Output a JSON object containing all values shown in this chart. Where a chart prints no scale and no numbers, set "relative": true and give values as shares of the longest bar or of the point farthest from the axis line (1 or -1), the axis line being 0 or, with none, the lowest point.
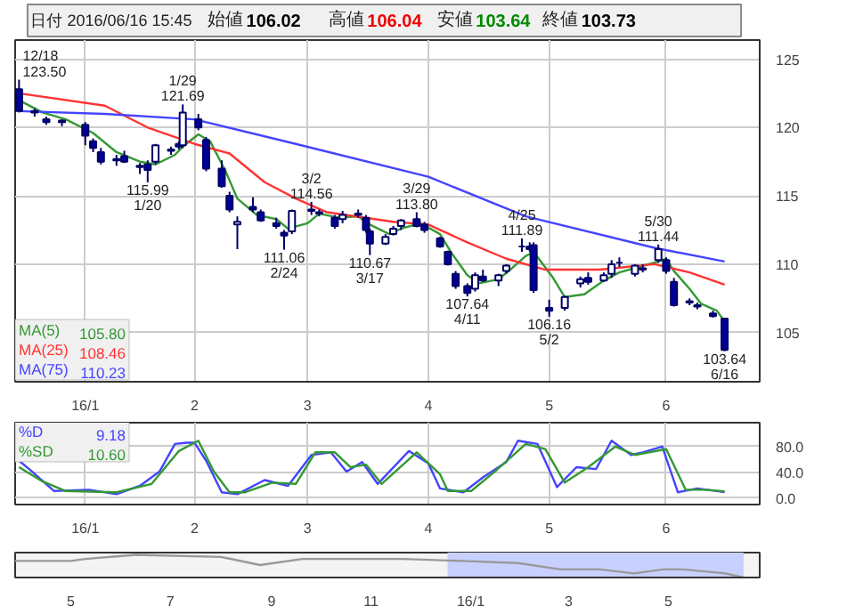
{
  "chart_data": [
    {
      "type": "candlestick",
      "title": "日付 2016/06/16 15:45",
      "x": [
        "2015-12-18",
        "2015-12-22",
        "2015-12-25",
        "2015-12-29",
        "2016-01-04",
        "2016-01-06",
        "2016-01-08",
        "2016-01-12",
        "2016-01-14",
        "2016-01-18",
        "2016-01-20",
        "2016-01-22",
        "2016-01-26",
        "2016-01-28",
        "2016-01-29",
        "2016-02-02",
        "2016-02-04",
        "2016-02-08",
        "2016-02-10",
        "2016-02-12",
        "2016-02-16",
        "2016-02-18",
        "2016-02-22",
        "2016-02-24",
        "2016-02-26",
        "2016-03-02",
        "2016-03-04",
        "2016-03-08",
        "2016-03-10",
        "2016-03-14",
        "2016-03-16",
        "2016-03-17",
        "2016-03-21",
        "2016-03-23",
        "2016-03-25",
        "2016-03-29",
        "2016-03-31",
        "2016-04-04",
        "2016-04-06",
        "2016-04-08",
        "2016-04-11",
        "2016-04-13",
        "2016-04-15",
        "2016-04-19",
        "2016-04-21",
        "2016-04-25",
        "2016-04-27",
        "2016-04-28",
        "2016-05-02",
        "2016-05-06",
        "2016-05-10",
        "2016-05-12",
        "2016-05-16",
        "2016-05-18",
        "2016-05-20",
        "2016-05-24",
        "2016-05-26",
        "2016-05-30",
        "2016-06-01",
        "2016-06-03",
        "2016-06-07",
        "2016-06-09",
        "2016-06-13",
        "2016-06-16"
      ],
      "ohlc": [
        [
          122.8,
          123.5,
          121.1,
          121.2
        ],
        [
          121.2,
          121.4,
          120.8,
          121.1
        ],
        [
          120.6,
          120.8,
          120.2,
          120.4
        ],
        [
          120.4,
          120.6,
          120.1,
          120.5
        ],
        [
          120.2,
          120.4,
          118.7,
          119.4
        ],
        [
          119.0,
          119.2,
          118.2,
          118.5
        ],
        [
          118.2,
          118.5,
          117.3,
          117.5
        ],
        [
          117.6,
          118.0,
          117.2,
          117.7
        ],
        [
          117.9,
          118.3,
          117.4,
          117.5
        ],
        [
          117.1,
          117.4,
          116.6,
          117.2
        ],
        [
          117.3,
          117.6,
          115.99,
          116.9
        ],
        [
          117.5,
          118.8,
          117.3,
          118.7
        ],
        [
          118.4,
          118.6,
          118.0,
          118.3
        ],
        [
          118.8,
          119.0,
          118.4,
          118.6
        ],
        [
          118.7,
          121.69,
          118.5,
          121.1
        ],
        [
          120.6,
          121.0,
          119.8,
          120.0
        ],
        [
          119.1,
          119.3,
          116.8,
          117.0
        ],
        [
          117.0,
          117.6,
          115.6,
          115.7
        ],
        [
          115.0,
          115.3,
          113.8,
          114.0
        ],
        [
          112.9,
          113.5,
          111.1,
          113.1
        ],
        [
          114.2,
          114.9,
          113.8,
          114.0
        ],
        [
          113.8,
          114.0,
          113.1,
          113.2
        ],
        [
          113.0,
          113.4,
          112.6,
          112.8
        ],
        [
          112.3,
          112.5,
          111.06,
          112.1
        ],
        [
          112.4,
          114.0,
          112.2,
          113.9
        ],
        [
          113.9,
          114.56,
          113.6,
          114.0
        ],
        [
          113.7,
          114.0,
          113.5,
          113.8
        ],
        [
          113.4,
          113.6,
          112.6,
          112.8
        ],
        [
          113.3,
          113.9,
          113.0,
          113.6
        ],
        [
          113.6,
          114.0,
          113.4,
          113.7
        ],
        [
          113.4,
          113.6,
          112.3,
          112.5
        ],
        [
          112.4,
          112.6,
          110.67,
          111.5
        ],
        [
          111.5,
          112.2,
          111.4,
          112.0
        ],
        [
          112.2,
          112.8,
          112.1,
          112.6
        ],
        [
          112.8,
          113.3,
          112.5,
          113.2
        ],
        [
          113.3,
          113.8,
          112.7,
          112.8
        ],
        [
          112.9,
          113.1,
          112.3,
          112.5
        ],
        [
          111.9,
          112.0,
          111.2,
          111.3
        ],
        [
          110.9,
          111.0,
          109.9,
          110.0
        ],
        [
          109.3,
          109.5,
          108.2,
          108.4
        ],
        [
          108.4,
          108.6,
          107.64,
          107.9
        ],
        [
          108.2,
          109.4,
          108.0,
          109.2
        ],
        [
          109.1,
          109.6,
          108.7,
          108.8
        ],
        [
          108.8,
          109.3,
          108.4,
          109.2
        ],
        [
          109.5,
          110.0,
          109.3,
          109.9
        ],
        [
          111.3,
          111.89,
          110.9,
          111.3
        ],
        [
          111.3,
          111.6,
          110.9,
          111.1
        ],
        [
          111.4,
          111.6,
          107.9,
          108.1
        ],
        [
          106.8,
          107.4,
          106.16,
          106.6
        ],
        [
          106.8,
          107.7,
          106.6,
          107.6
        ],
        [
          108.6,
          109.1,
          108.3,
          108.9
        ],
        [
          109.0,
          109.4,
          108.5,
          108.7
        ],
        [
          108.8,
          109.4,
          108.7,
          109.2
        ],
        [
          109.3,
          110.3,
          109.0,
          110.0
        ],
        [
          110.1,
          110.5,
          109.8,
          110.1
        ],
        [
          109.3,
          110.0,
          109.1,
          109.9
        ],
        [
          109.6,
          110.0,
          109.4,
          109.7
        ],
        [
          110.3,
          111.44,
          110.1,
          111.1
        ],
        [
          110.3,
          110.5,
          109.3,
          109.5
        ],
        [
          108.7,
          109.0,
          106.9,
          107.0
        ],
        [
          107.3,
          107.5,
          107.0,
          107.2
        ],
        [
          107.0,
          107.2,
          106.7,
          106.9
        ],
        [
          106.4,
          106.6,
          106.1,
          106.2
        ],
        [
          106.02,
          106.04,
          103.64,
          103.73
        ]
      ],
      "series": [
        {
          "type": "line",
          "name": "MA(5)",
          "color": "#339933",
          "x": [
            "2015-12-18",
            "2015-12-24",
            "2015-12-30",
            "2016-01-06",
            "2016-01-12",
            "2016-01-18",
            "2016-01-22",
            "2016-01-27",
            "2016-01-29",
            "2016-02-02",
            "2016-02-05",
            "2016-02-09",
            "2016-02-12",
            "2016-02-17",
            "2016-02-22",
            "2016-02-25",
            "2016-03-01",
            "2016-03-04",
            "2016-03-09",
            "2016-03-14",
            "2016-03-17",
            "2016-03-22",
            "2016-03-25",
            "2016-03-30",
            "2016-04-04",
            "2016-04-07",
            "2016-04-11",
            "2016-04-14",
            "2016-04-19",
            "2016-04-22",
            "2016-04-26",
            "2016-04-28",
            "2016-05-03",
            "2016-05-06",
            "2016-05-11",
            "2016-05-16",
            "2016-05-20",
            "2016-05-25",
            "2016-05-30",
            "2016-06-01",
            "2016-06-03",
            "2016-06-07",
            "2016-06-10",
            "2016-06-14",
            "2016-06-16"
          ],
          "values": [
            122.0,
            121.1,
            120.6,
            119.6,
            118.2,
            117.5,
            117.3,
            118.0,
            118.6,
            119.5,
            119.0,
            116.8,
            114.8,
            113.6,
            113.3,
            112.6,
            113.0,
            113.7,
            113.4,
            113.5,
            112.9,
            112.2,
            112.6,
            113.0,
            112.2,
            110.8,
            109.2,
            108.6,
            108.9,
            109.6,
            110.6,
            110.9,
            109.0,
            107.6,
            107.8,
            108.8,
            109.4,
            109.8,
            110.2,
            110.4,
            109.5,
            108.2,
            107.1,
            106.6,
            105.8
          ]
        },
        {
          "type": "line",
          "name": "MA(25)",
          "color": "#ff3333",
          "x": [
            "2015-12-18",
            "2016-01-09",
            "2016-01-20",
            "2016-02-01",
            "2016-02-10",
            "2016-02-19",
            "2016-02-27",
            "2016-03-06",
            "2016-03-23",
            "2016-04-01",
            "2016-04-11",
            "2016-04-21",
            "2016-05-01",
            "2016-05-15",
            "2016-05-29",
            "2016-06-07",
            "2016-06-16"
          ],
          "values": [
            122.5,
            121.6,
            120.0,
            118.8,
            118.1,
            116.0,
            114.8,
            113.8,
            113.1,
            112.9,
            111.6,
            110.4,
            109.6,
            109.6,
            110.0,
            109.4,
            108.5
          ]
        },
        {
          "type": "line",
          "name": "MA(75)",
          "color": "#4444ff",
          "x": [
            "2015-12-18",
            "2016-01-09",
            "2016-02-01",
            "2016-02-27",
            "2016-04-01",
            "2016-04-26",
            "2016-05-29",
            "2016-06-16"
          ],
          "values": [
            121.2,
            121.0,
            120.6,
            118.8,
            116.4,
            113.5,
            111.2,
            110.2
          ]
        }
      ],
      "annotations": [
        "始値 106.02",
        "高値 106.04",
        "安値 103.64",
        "終値 103.73",
        "105.80",
        "108.46",
        "110.23",
        {
          "text": "12/18\n123.50",
          "x": "2015-12-18",
          "y": 123.5
        },
        {
          "text": "115.99\n1/20",
          "x": "2016-01-20",
          "y": 115.99
        },
        {
          "text": "1/29\n121.69",
          "x": "2016-01-29",
          "y": 121.69
        },
        {
          "text": "111.06\n2/24",
          "x": "2016-02-24",
          "y": 111.06
        },
        {
          "text": "3/2\n114.56",
          "x": "2016-03-02",
          "y": 114.56
        },
        {
          "text": "110.67\n3/17",
          "x": "2016-03-17",
          "y": 110.67
        },
        {
          "text": "3/29\n113.80",
          "x": "2016-03-29",
          "y": 113.8
        },
        {
          "text": "107.64\n4/11",
          "x": "2016-04-11",
          "y": 107.64
        },
        {
          "text": "4/25\n111.89",
          "x": "2016-04-25",
          "y": 111.89
        },
        {
          "text": "106.16\n5/2",
          "x": "2016-05-02",
          "y": 106.16
        },
        {
          "text": "5/30\n111.44",
          "x": "2016-05-30",
          "y": 111.44
        },
        {
          "text": "103.64\n6/16",
          "x": "2016-06-16",
          "y": 103.64
        }
      ],
      "xlim": [
        "2015-12-17",
        "2016-06-25"
      ],
      "ylim": [
        101.4,
        126.4
      ],
      "yticks": [
        105,
        110,
        115,
        120,
        125
      ],
      "xticks": [
        {
          "value": "2016-01-04",
          "label": "16/1"
        },
        {
          "value": "2016-02-01",
          "label": "2"
        },
        {
          "value": "2016-03-01",
          "label": "3"
        },
        {
          "value": "2016-04-01",
          "label": "4"
        },
        {
          "value": "2016-05-02",
          "label": "5"
        },
        {
          "value": "2016-06-01",
          "label": "6"
        }
      ],
      "grid": true,
      "legend": "bottom left"
    },
    {
      "type": "line",
      "series": [
        {
          "name": "%D",
          "color": "#4444ff",
          "x": [
            "2015-12-18",
            "2015-12-21",
            "2015-12-27",
            "2016-01-05",
            "2016-01-12",
            "2016-01-18",
            "2016-01-23",
            "2016-01-27",
            "2016-01-30",
            "2016-02-01",
            "2016-02-04",
            "2016-02-08",
            "2016-02-12",
            "2016-02-19",
            "2016-02-25",
            "2016-03-02",
            "2016-03-07",
            "2016-03-11",
            "2016-03-15",
            "2016-03-19",
            "2016-03-27",
            "2016-04-01",
            "2016-04-04",
            "2016-04-10",
            "2016-04-15",
            "2016-04-21",
            "2016-04-24",
            "2016-04-29",
            "2016-05-04",
            "2016-05-09",
            "2016-05-14",
            "2016-05-18",
            "2016-05-23",
            "2016-05-26",
            "2016-05-31",
            "2016-06-04",
            "2016-06-09",
            "2016-06-16"
          ],
          "values": [
            58,
            43,
            11,
            13,
            6,
            19,
            41,
            84,
            86,
            86,
            58,
            9,
            6,
            28,
            19,
            67,
            71,
            41,
            56,
            22,
            73,
            54,
            15,
            9,
            32,
            56,
            89,
            84,
            17,
            48,
            45,
            89,
            67,
            71,
            80,
            9,
            15,
            9.18
          ]
        },
        {
          "name": "%SD",
          "color": "#339933",
          "x": [
            "2015-12-18",
            "2015-12-24",
            "2015-12-30",
            "2016-01-12",
            "2016-01-21",
            "2016-01-28",
            "2016-02-02",
            "2016-02-06",
            "2016-02-10",
            "2016-02-14",
            "2016-02-21",
            "2016-02-27",
            "2016-03-03",
            "2016-03-08",
            "2016-03-12",
            "2016-03-16",
            "2016-03-20",
            "2016-03-29",
            "2016-04-04",
            "2016-04-06",
            "2016-04-12",
            "2016-04-18",
            "2016-04-26",
            "2016-05-01",
            "2016-05-06",
            "2016-05-12",
            "2016-05-19",
            "2016-05-24",
            "2016-06-01",
            "2016-06-06",
            "2016-06-11",
            "2016-06-16"
          ],
          "values": [
            48,
            26,
            11,
            9,
            22,
            73,
            89,
            41,
            9,
            9,
            24,
            22,
            71,
            71,
            48,
            52,
            22,
            71,
            37,
            11,
            11,
            41,
            84,
            76,
            24,
            48,
            80,
            67,
            76,
            13,
            13,
            10.6
          ]
        }
      ],
      "annotations": [
        "9.18",
        "10.60"
      ],
      "xlim": [
        "2015-12-17",
        "2016-06-25"
      ],
      "ylim": [
        -10,
        117
      ],
      "yticks": [
        {
          "value": 0,
          "label": "0.0"
        },
        {
          "value": 40,
          "label": "40.0"
        },
        {
          "value": 80,
          "label": "80.0"
        }
      ],
      "xticks": [
        {
          "value": "2016-01-04",
          "label": "16/1"
        },
        {
          "value": "2016-02-01",
          "label": "2"
        },
        {
          "value": "2016-03-01",
          "label": "3"
        },
        {
          "value": "2016-04-01",
          "label": "4"
        },
        {
          "value": "2016-05-02",
          "label": "5"
        },
        {
          "value": "2016-06-01",
          "label": "6"
        }
      ],
      "grid": true,
      "legend": "top left"
    },
    {
      "type": "line",
      "relative": true,
      "series": [
        {
          "color": "#999999",
          "x": [
            "2015-03-28",
            "2015-05-01",
            "2015-05-10",
            "2015-06-10",
            "2015-08-01",
            "2015-08-25",
            "2015-09-20",
            "2015-11-20",
            "2015-12-27",
            "2016-01-30",
            "2016-02-25",
            "2016-03-20",
            "2016-04-10",
            "2016-04-28",
            "2016-05-10",
            "2016-06-05",
            "2016-06-16"
          ],
          "values": [
            0.73,
            0.73,
            0.82,
            1.0,
            0.91,
            0.55,
            0.82,
            0.82,
            0.73,
            0.64,
            0.36,
            0.36,
            0.18,
            0.36,
            0.36,
            0.18,
            0.0
          ]
        }
      ],
      "bands": [
        {
          "axis": "x",
          "from": "2015-12-18",
          "to": "2016-06-16",
          "color": "#c8d0ff"
        }
      ],
      "xlim": [
        "2015-03-28",
        "2016-06-26"
      ],
      "xticks": [
        {
          "value": "2015-05-01",
          "label": "5"
        },
        {
          "value": "2015-07-01",
          "label": "7"
        },
        {
          "value": "2015-09-01",
          "label": "9"
        },
        {
          "value": "2015-11-01",
          "label": "11"
        },
        {
          "value": "2016-01-01",
          "label": "16/1"
        },
        {
          "value": "2016-03-01",
          "label": "3"
        },
        {
          "value": "2016-05-01",
          "label": "5"
        }
      ],
      "tick_labels": "x"
    }
  ]
}
